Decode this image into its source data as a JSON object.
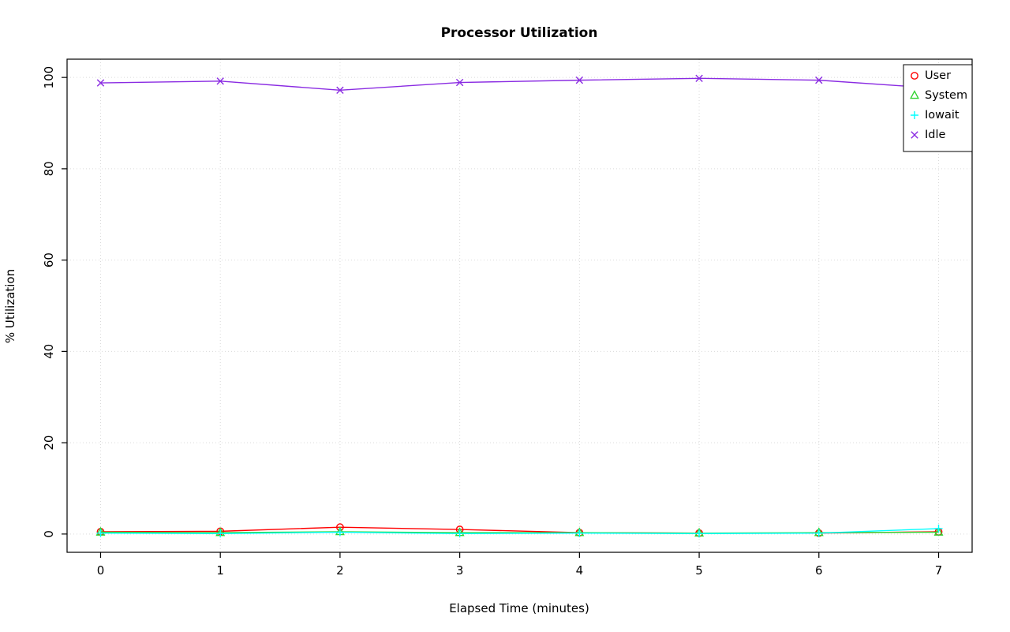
{
  "title": "Processor Utilization",
  "chart_data": {
    "type": "line",
    "title": "Processor Utilization",
    "xlabel": "Elapsed Time (minutes)",
    "ylabel": "% Utilization",
    "x": [
      0,
      1,
      2,
      3,
      4,
      5,
      6,
      7
    ],
    "xticks": [
      0,
      1,
      2,
      3,
      4,
      5,
      6,
      7
    ],
    "yticks": [
      0,
      20,
      40,
      60,
      80,
      100
    ],
    "xlim": [
      -0.28,
      7.28
    ],
    "ylim": [
      -4,
      104
    ],
    "grid": "dotted",
    "legend_position": "top-right",
    "series": [
      {
        "name": "User",
        "color": "#FF0000",
        "marker": "circle",
        "values": [
          0.5,
          0.6,
          1.5,
          1.0,
          0.3,
          0.2,
          0.2,
          0.5
        ]
      },
      {
        "name": "System",
        "color": "#33D433",
        "marker": "triangle",
        "values": [
          0.4,
          0.3,
          0.5,
          0.3,
          0.3,
          0.2,
          0.3,
          0.4
        ]
      },
      {
        "name": "Iowait",
        "color": "#00FFFF",
        "marker": "plus",
        "values": [
          0.2,
          0.1,
          0.4,
          0.1,
          0.2,
          0.1,
          0.2,
          1.2
        ]
      },
      {
        "name": "Idle",
        "color": "#8A2BE2",
        "marker": "x",
        "values": [
          98.8,
          99.2,
          97.2,
          98.9,
          99.4,
          99.8,
          99.4,
          97.6
        ]
      }
    ]
  },
  "colors": {
    "grid": "#D9D9D9",
    "axis": "#000000",
    "background": "#FFFFFF"
  }
}
